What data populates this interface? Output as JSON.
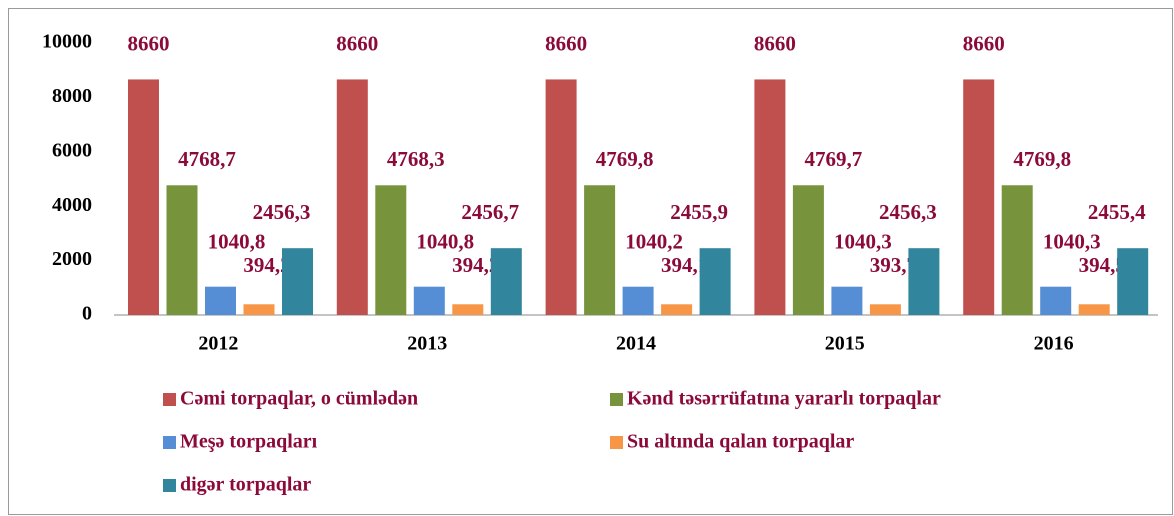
{
  "chart_data": {
    "type": "bar",
    "categories": [
      "2012",
      "2013",
      "2014",
      "2015",
      "2016"
    ],
    "series": [
      {
        "name": "Cəmi torpaqlar, o cümlədən",
        "color": "#c0504d",
        "values": [
          8660,
          8660,
          8660,
          8660,
          8660
        ]
      },
      {
        "name": "Kənd təsərrüfatına yararlı torpaqlar",
        "color": "#77933c",
        "values": [
          4768.7,
          4768.3,
          4769.8,
          4769.7,
          4769.8
        ],
        "value_labels": [
          "4768,7",
          "4768,3",
          "4769,8",
          "4769,7",
          "4769,8"
        ]
      },
      {
        "name": "Meşə torpaqları",
        "color": "#558ed5",
        "values": [
          1040.8,
          1040.8,
          1040.2,
          1040.3,
          1040.3
        ],
        "value_labels": [
          "1040,8",
          "1040,8",
          "1040,2",
          "1040,3",
          "1040,3"
        ]
      },
      {
        "name": "Su altında qalan torpaqlar",
        "color": "#f79646",
        "values": [
          394.2,
          394.2,
          394.1,
          393.7,
          394.5
        ],
        "value_labels": [
          "394,2",
          "394,2",
          "394,1",
          "393,7",
          "394,5"
        ]
      },
      {
        "name": "digər torpaqlar",
        "color": "#31859c",
        "values": [
          2456.3,
          2456.7,
          2455.9,
          2456.3,
          2455.4
        ],
        "value_labels": [
          "2456,3",
          "2456,7",
          "2455,9",
          "2456,3",
          "2455,4"
        ]
      }
    ],
    "ylim": [
      0,
      10000
    ],
    "yticks": [
      0,
      2000,
      4000,
      6000,
      8000,
      10000
    ],
    "grid": false
  }
}
